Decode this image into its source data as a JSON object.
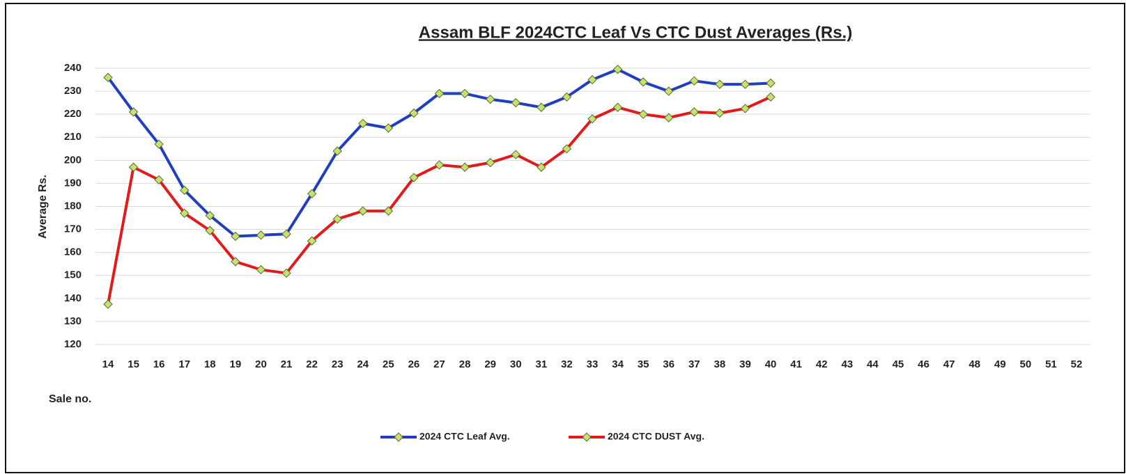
{
  "chart_data": {
    "type": "line",
    "title": "Assam BLF 2024CTC Leaf Vs CTC Dust Averages (Rs.)",
    "x_label": "Sale no.",
    "y_label": "Average Rs.",
    "categories": [
      "14",
      "15",
      "16",
      "17",
      "18",
      "19",
      "20",
      "21",
      "22",
      "23",
      "24",
      "25",
      "26",
      "27",
      "28",
      "29",
      "30",
      "31",
      "32",
      "33",
      "34",
      "35",
      "36",
      "37",
      "38",
      "39",
      "40",
      "41",
      "42",
      "43",
      "44",
      "45",
      "46",
      "47",
      "48",
      "49",
      "50",
      "51",
      "52"
    ],
    "series": [
      {
        "name": "2024 CTC Leaf Avg.",
        "color": "#1f3fbf",
        "values": [
          236,
          221,
          207,
          187,
          176,
          167,
          167.5,
          168,
          185.5,
          204,
          216,
          214,
          220.5,
          229,
          229,
          226.5,
          225,
          223,
          227.5,
          235,
          239.5,
          234,
          230,
          234.5,
          233,
          233,
          233.5,
          null,
          null,
          null,
          null,
          null,
          null,
          null,
          null,
          null,
          null,
          null,
          null
        ]
      },
      {
        "name": "2024 CTC DUST Avg.",
        "color": "#e31a1a",
        "values": [
          137.5,
          197,
          191.5,
          177,
          169.5,
          156,
          152.5,
          151,
          165,
          174.5,
          178,
          178,
          192.5,
          198,
          197,
          199,
          202.5,
          197,
          205,
          218,
          223,
          220,
          218.5,
          221,
          220.5,
          222.5,
          227.5,
          null,
          null,
          null,
          null,
          null,
          null,
          null,
          null,
          null,
          null,
          null,
          null
        ]
      }
    ],
    "marker_color": "#c8e06e",
    "ylim": [
      120,
      240
    ],
    "yticks": [
      120,
      130,
      140,
      150,
      160,
      170,
      180,
      190,
      200,
      210,
      220,
      230,
      240
    ],
    "grid": true,
    "legend": "bottom"
  }
}
